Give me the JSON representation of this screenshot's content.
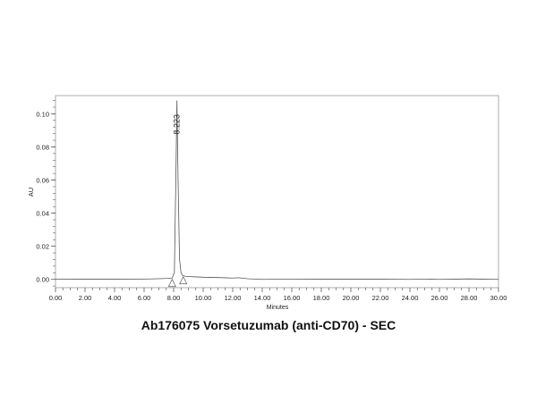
{
  "chart_data": {
    "type": "line",
    "title": "Ab176075 Vorsetuzumab (anti-CD70) - SEC",
    "xlabel": "Minutes",
    "ylabel": "AU",
    "xlim": [
      0,
      30
    ],
    "ylim": [
      -0.005,
      0.111
    ],
    "xticks": [
      "0.00",
      "2.00",
      "4.00",
      "6.00",
      "8.00",
      "10.00",
      "12.00",
      "14.00",
      "16.00",
      "18.00",
      "20.00",
      "22.00",
      "24.00",
      "26.00",
      "28.00",
      "30.00"
    ],
    "yticks": [
      "0.00",
      "0.02",
      "0.04",
      "0.06",
      "0.08",
      "0.10"
    ],
    "grid": false,
    "peak_label": "8.223",
    "peak": {
      "x": 8.223,
      "y": 0.108
    },
    "integration_markers_x": [
      7.9,
      8.65
    ],
    "series": [
      {
        "x": [
          0,
          2,
          4,
          6,
          7.0,
          7.6,
          7.9,
          8.05,
          8.15,
          8.223,
          8.3,
          8.4,
          8.5,
          8.6,
          8.8,
          9.5,
          10,
          11,
          12,
          12.4,
          13,
          14,
          16,
          18,
          20,
          22,
          24,
          25.5,
          26,
          27,
          28,
          29,
          30
        ],
        "y": [
          0.0002,
          0.0001,
          0.0001,
          0.0002,
          0.0004,
          0.0006,
          0.0008,
          0.004,
          0.06,
          0.108,
          0.06,
          0.012,
          0.004,
          0.0025,
          0.0018,
          0.0015,
          0.0013,
          0.0011,
          0.0008,
          0.001,
          0.0004,
          0.0,
          0.0002,
          0.0001,
          0.0001,
          0.0001,
          0.0,
          0.0002,
          0.0,
          0.0001,
          0.0003,
          0.0001,
          0.0
        ]
      }
    ],
    "colors": {
      "trace": "#555555",
      "axis": "#333333"
    }
  }
}
